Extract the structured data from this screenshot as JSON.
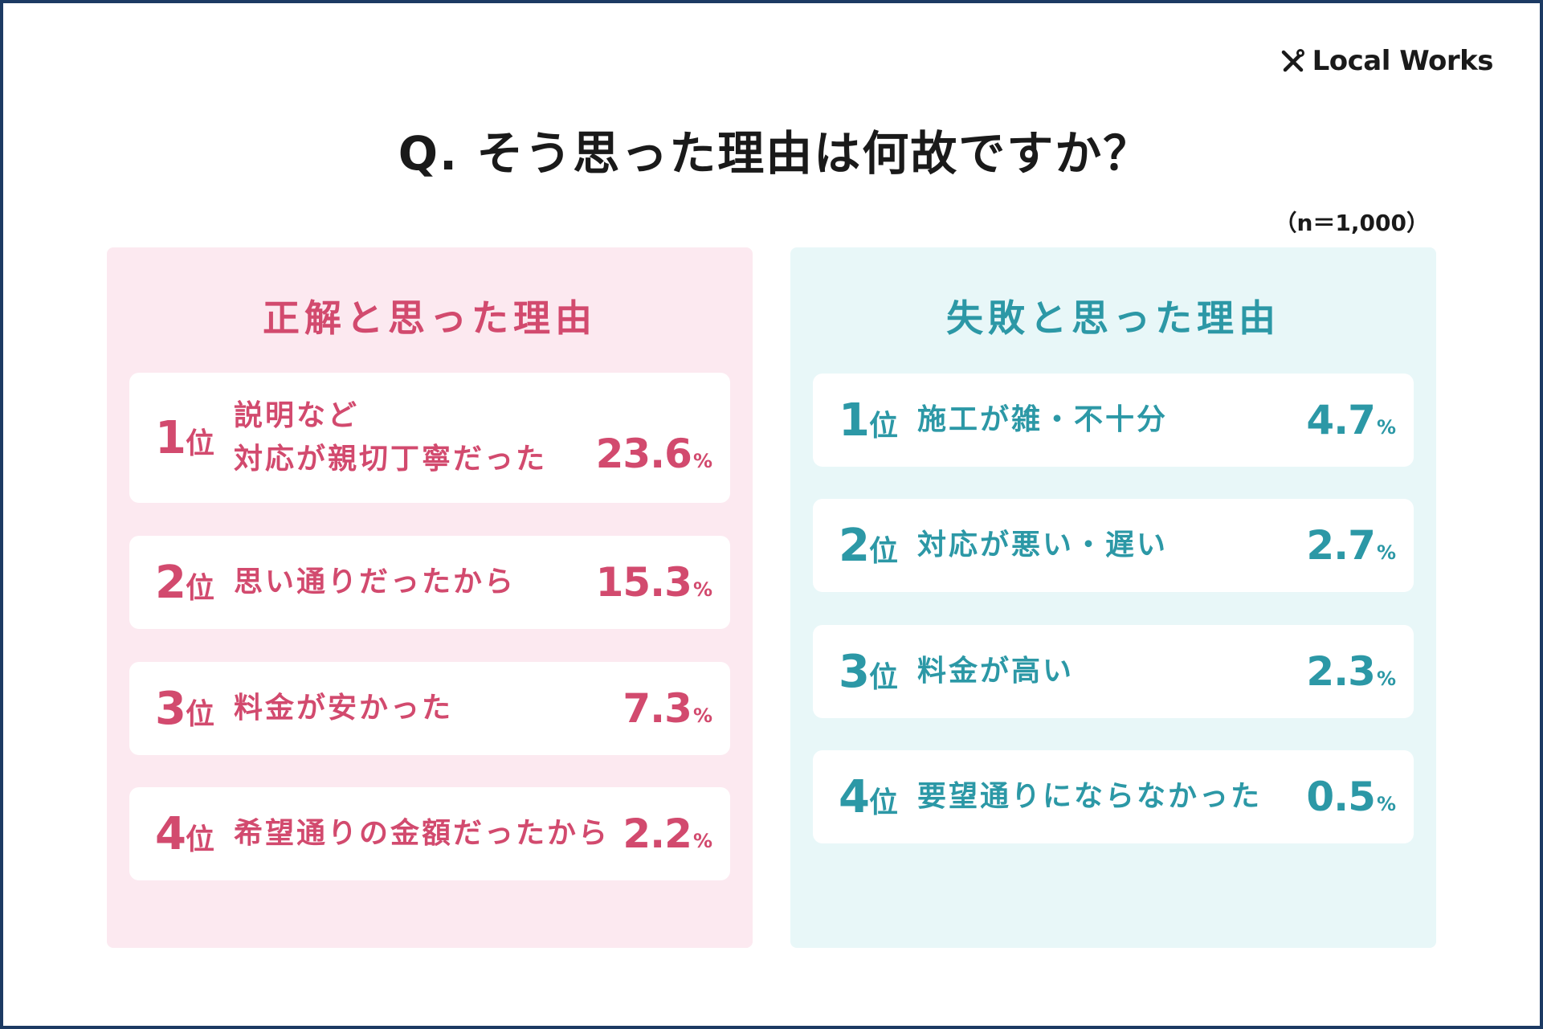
{
  "brand": {
    "name": "Local Works",
    "icon": "tools-cross-icon"
  },
  "question": "Q. そう思った理由は何故ですか？",
  "sample_size": "（n＝1,000）",
  "colors": {
    "frame": "#1c3a63",
    "pink": "#d24a6e",
    "pink_bg": "#fce9f0",
    "teal": "#2c98a6",
    "teal_bg": "#e8f7f8"
  },
  "rank_suffix": "位",
  "percent_unit": "%",
  "chart_data": [
    {
      "type": "table",
      "title": "正解と思った理由",
      "rows": [
        {
          "rank": "1",
          "label_lines": [
            "説明など",
            "対応が親切丁寧だった"
          ],
          "value": "23.6"
        },
        {
          "rank": "2",
          "label_lines": [
            "思い通りだったから"
          ],
          "value": "15.3"
        },
        {
          "rank": "3",
          "label_lines": [
            "料金が安かった"
          ],
          "value": "7.3"
        },
        {
          "rank": "4",
          "label_lines": [
            "希望通りの金額だったから"
          ],
          "value": "2.2"
        }
      ]
    },
    {
      "type": "table",
      "title": "失敗と思った理由",
      "rows": [
        {
          "rank": "1",
          "label_lines": [
            "施工が雑・不十分"
          ],
          "value": "4.7"
        },
        {
          "rank": "2",
          "label_lines": [
            "対応が悪い・遅い"
          ],
          "value": "2.7"
        },
        {
          "rank": "3",
          "label_lines": [
            "料金が高い"
          ],
          "value": "2.3"
        },
        {
          "rank": "4",
          "label_lines": [
            "要望通りにならなかった"
          ],
          "value": "0.5"
        }
      ]
    }
  ]
}
